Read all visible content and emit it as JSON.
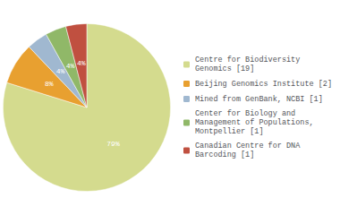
{
  "chart_data": {
    "type": "pie",
    "categories": [
      "Centre for Biodiversity\nGenomics [19]",
      "Beijing Genomics Institute [2]",
      "Mined from GenBank, NCBI [1]",
      "Center for Biology and\nManagement of Populations,\nMontpellier [1]",
      "Canadian Centre for DNA\nBarcoding [1]"
    ],
    "values": [
      79,
      8,
      4,
      4,
      4
    ],
    "value_labels": [
      "79%",
      "8%",
      "4%",
      "4%",
      "4%"
    ],
    "colors": [
      "#d4db8e",
      "#e8a030",
      "#a0b8d0",
      "#90b868",
      "#c05040"
    ],
    "data_labels": true,
    "legend": "right"
  }
}
